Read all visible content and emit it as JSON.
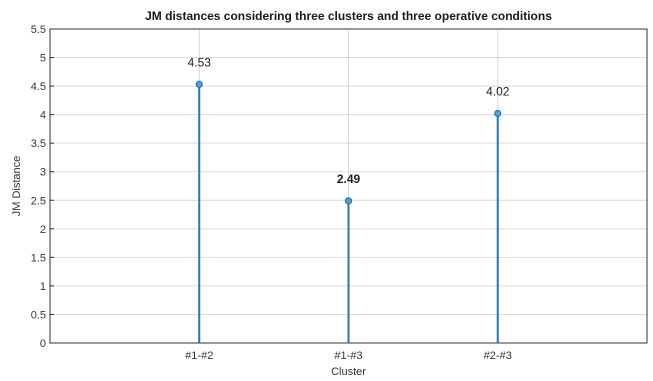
{
  "chart_data": {
    "type": "stem",
    "title": "JM distances considering three clusters and three operative conditions",
    "xlabel": "Cluster",
    "ylabel": "JM Distance",
    "categories": [
      "#1-#2",
      "#1-#3",
      "#2-#3"
    ],
    "values": [
      4.53,
      2.49,
      4.02
    ],
    "data_labels": [
      "4.53",
      "2.49",
      "4.02"
    ],
    "highlight_index": 1,
    "ylim": [
      0,
      5.5
    ],
    "yticks": [
      "0",
      "0.5",
      "1",
      "1.5",
      "2",
      "2.5",
      "3",
      "3.5",
      "4",
      "4.5",
      "5",
      "5.5"
    ],
    "grid": true,
    "colors": {
      "stem": "#1f77b4",
      "highlight_label": "#ff0000",
      "grid": "#d9d9d9"
    }
  }
}
